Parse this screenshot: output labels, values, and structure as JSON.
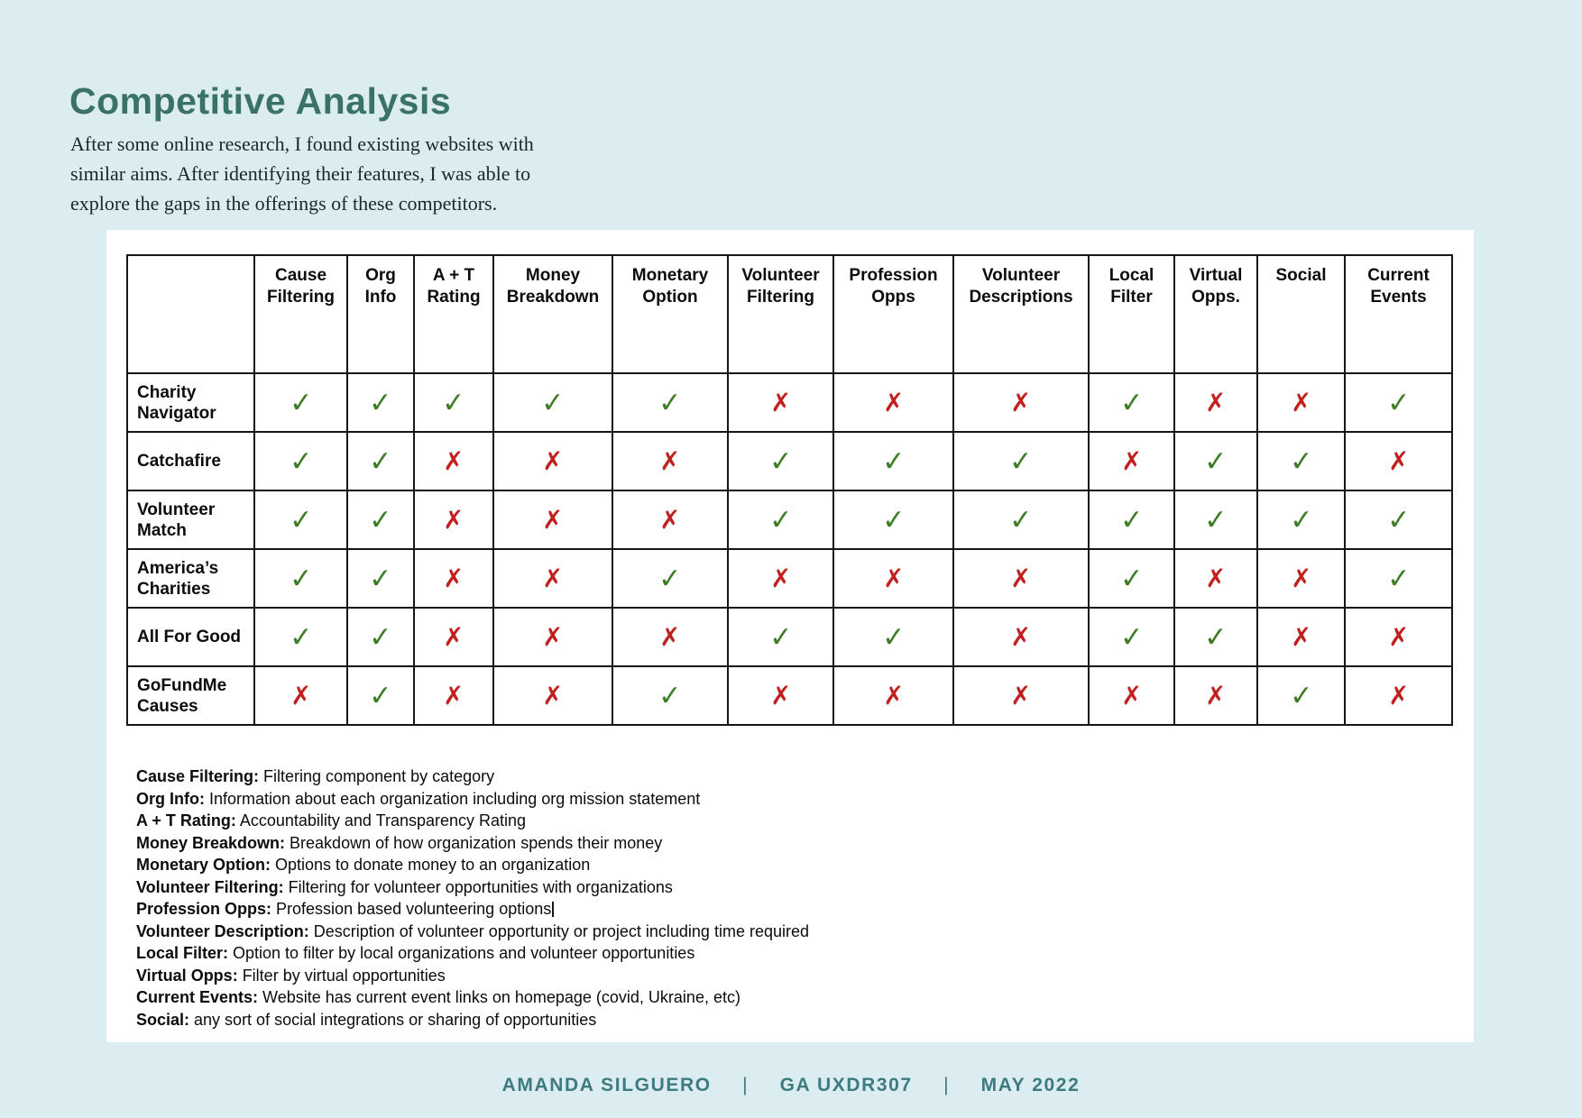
{
  "header": {
    "title": "Competitive Analysis",
    "intro_lines": [
      "After some online research, I found existing websites with",
      "similar aims. After identifying their features, I was able to",
      "explore the gaps in the offerings of these competitors."
    ]
  },
  "table": {
    "corner_label": "",
    "columns": [
      "Cause Filtering",
      "Org Info",
      "A + T Rating",
      "Money Breakdown",
      "Monetary Option",
      "Volunteer Filtering",
      "Profession Opps",
      "Volunteer Descriptions",
      "Local Filter",
      "Virtual Opps.",
      "Social",
      "Current Events"
    ],
    "check_glyph": "✓",
    "cross_glyph": "✗",
    "check_color": "#3e7d26",
    "cross_color": "#c21f1f",
    "competitors": [
      {
        "name": "Charity Navigator",
        "features": [
          true,
          true,
          true,
          true,
          true,
          false,
          false,
          false,
          true,
          false,
          false,
          true
        ]
      },
      {
        "name": "Catchafire",
        "features": [
          true,
          true,
          false,
          false,
          false,
          true,
          true,
          true,
          false,
          true,
          true,
          false
        ]
      },
      {
        "name": "Volunteer Match",
        "features": [
          true,
          true,
          false,
          false,
          false,
          true,
          true,
          true,
          true,
          true,
          true,
          true
        ]
      },
      {
        "name": "America’s Charities",
        "features": [
          true,
          true,
          false,
          false,
          true,
          false,
          false,
          false,
          true,
          false,
          false,
          true
        ]
      },
      {
        "name": "All For Good",
        "features": [
          true,
          true,
          false,
          false,
          false,
          true,
          true,
          false,
          true,
          true,
          false,
          false
        ]
      },
      {
        "name": "GoFundMe Causes",
        "features": [
          false,
          true,
          false,
          false,
          true,
          false,
          false,
          false,
          false,
          false,
          true,
          false
        ]
      }
    ]
  },
  "glossary": [
    {
      "term": "Cause Filtering:",
      "definition": "Filtering component by category"
    },
    {
      "term": "Org Info:",
      "definition": "Information about each organization including org mission statement"
    },
    {
      "term": "A + T Rating:",
      "definition": "Accountability and Transparency Rating"
    },
    {
      "term": "Money Breakdown:",
      "definition": "Breakdown of how organization spends their money"
    },
    {
      "term": "Monetary Option:",
      "definition": "Options to donate money to an organization"
    },
    {
      "term": "Volunteer Filtering:",
      "definition": "Filtering for volunteer opportunities with organizations"
    },
    {
      "term": "Profession Opps:",
      "definition": "Profession based volunteering options",
      "caret": true
    },
    {
      "term": "Volunteer Description:",
      "definition": "Description of volunteer opportunity or project including time required"
    },
    {
      "term": "Local Filter:",
      "definition": "Option to filter by local organizations and volunteer opportunities"
    },
    {
      "term": "Virtual Opps:",
      "definition": "Filter by virtual opportunities"
    },
    {
      "term": "Current Events:",
      "definition": "Website has current event links on homepage (covid, Ukraine, etc)"
    },
    {
      "term": "Social:",
      "definition": "any sort of social integrations or sharing of opportunities"
    }
  ],
  "footer": {
    "author": "AMANDA SILGUERO",
    "separator": "|",
    "course": "GA UXDR307",
    "date": "MAY 2022"
  },
  "colors": {
    "background": "#dbedf0",
    "card": "#ffffff",
    "title": "#3b7268",
    "footer_text": "#3d7b80",
    "table_border": "#161616"
  }
}
